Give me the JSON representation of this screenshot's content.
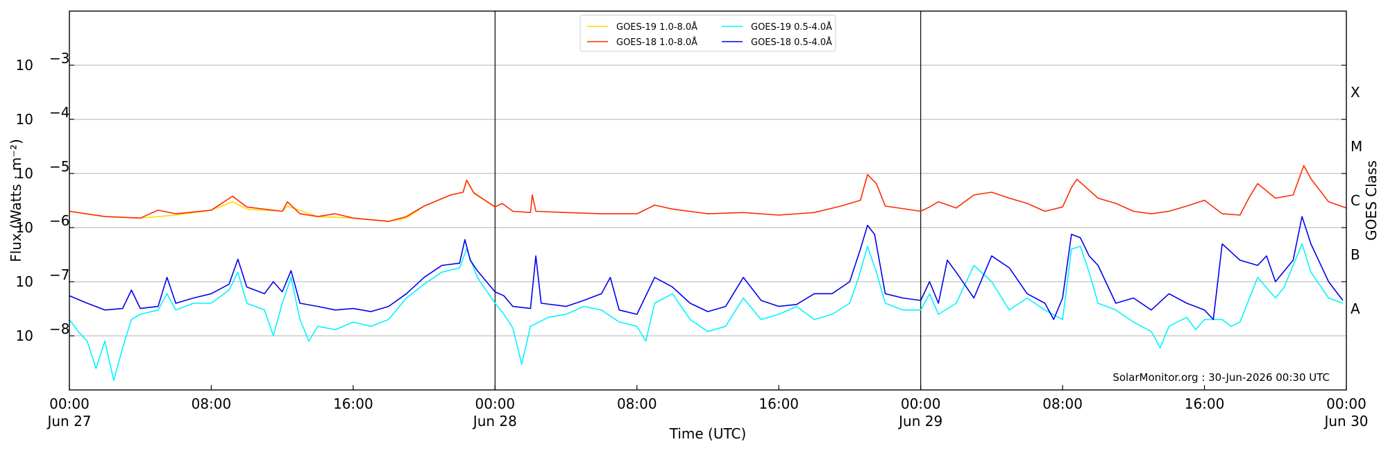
{
  "chart_data": {
    "type": "line",
    "xlabel": "Time (UTC)",
    "ylabel": "Flux (Watts · m⁻²)",
    "y2label": "GOES Class",
    "yscale": "log",
    "xlim": [
      0,
      72
    ],
    "ylim": [
      1e-09,
      0.01
    ],
    "grid": "horizontal",
    "legend_position": "top-center",
    "credit": "SolarMonitor.org : 30-Jun-2026 00:30 UTC",
    "x_ticks": [
      {
        "x": 0,
        "line1": "00:00",
        "line2": "Jun 27"
      },
      {
        "x": 8,
        "line1": "08:00",
        "line2": ""
      },
      {
        "x": 16,
        "line1": "16:00",
        "line2": ""
      },
      {
        "x": 24,
        "line1": "00:00",
        "line2": "Jun 28"
      },
      {
        "x": 32,
        "line1": "08:00",
        "line2": ""
      },
      {
        "x": 40,
        "line1": "16:00",
        "line2": ""
      },
      {
        "x": 48,
        "line1": "00:00",
        "line2": "Jun 29"
      },
      {
        "x": 56,
        "line1": "08:00",
        "line2": ""
      },
      {
        "x": 64,
        "line1": "16:00",
        "line2": ""
      },
      {
        "x": 72,
        "line1": "00:00",
        "line2": "Jun 30"
      }
    ],
    "y_ticks": [
      {
        "value": 1e-08,
        "base": "10",
        "exp": "−8"
      },
      {
        "value": 1e-07,
        "base": "10",
        "exp": "−7"
      },
      {
        "value": 1e-06,
        "base": "10",
        "exp": "−6"
      },
      {
        "value": 1e-05,
        "base": "10",
        "exp": "−5"
      },
      {
        "value": 0.0001,
        "base": "10",
        "exp": "−4"
      },
      {
        "value": 0.001,
        "base": "10",
        "exp": "−3"
      }
    ],
    "goes_classes": [
      {
        "label": "A",
        "value": 3.16e-08
      },
      {
        "label": "B",
        "value": 3.16e-07
      },
      {
        "label": "C",
        "value": 3.16e-06
      },
      {
        "label": "M",
        "value": 3.16e-05
      },
      {
        "label": "X",
        "value": 0.000316
      }
    ],
    "day_separators": [
      24,
      48
    ],
    "series": [
      {
        "name": "GOES-19 1.0-8.0Å",
        "color": "#FFD700",
        "points": [
          [
            0,
            2e-06
          ],
          [
            2,
            1.6e-06
          ],
          [
            4,
            1.5e-06
          ],
          [
            6,
            1.7e-06
          ],
          [
            8,
            2.1e-06
          ],
          [
            9.2,
            3e-06
          ],
          [
            10,
            2.2e-06
          ],
          [
            12,
            2e-06
          ],
          [
            12.3,
            2.5e-06
          ],
          [
            14,
            1.6e-06
          ],
          [
            16,
            1.5e-06
          ],
          [
            18,
            1.3e-06
          ],
          [
            19,
            1.5e-06
          ],
          [
            20,
            2.5e-06
          ],
          [
            21.5,
            4e-06
          ],
          [
            22.2,
            4.5e-06
          ],
          [
            22.4,
            7.5e-06
          ],
          [
            22.8,
            4.3e-06
          ],
          [
            24,
            2.4e-06
          ]
        ]
      },
      {
        "name": "GOES-18 1.0-8.0Å",
        "color": "#FF2A00",
        "points": [
          [
            0,
            2e-06
          ],
          [
            2,
            1.6e-06
          ],
          [
            4,
            1.5e-06
          ],
          [
            5,
            2.1e-06
          ],
          [
            6,
            1.8e-06
          ],
          [
            8,
            2.1e-06
          ],
          [
            9.2,
            3.8e-06
          ],
          [
            10,
            2.4e-06
          ],
          [
            12,
            2e-06
          ],
          [
            12.3,
            3e-06
          ],
          [
            13,
            1.8e-06
          ],
          [
            14,
            1.6e-06
          ],
          [
            15,
            1.8e-06
          ],
          [
            16,
            1.5e-06
          ],
          [
            18,
            1.3e-06
          ],
          [
            19,
            1.6e-06
          ],
          [
            20,
            2.5e-06
          ],
          [
            21.5,
            4e-06
          ],
          [
            22.2,
            4.5e-06
          ],
          [
            22.4,
            7.5e-06
          ],
          [
            22.8,
            4.4e-06
          ],
          [
            24,
            2.4e-06
          ],
          [
            24.4,
            2.8e-06
          ],
          [
            25,
            2e-06
          ],
          [
            26,
            1.9e-06
          ],
          [
            26.1,
            4e-06
          ],
          [
            26.3,
            2e-06
          ],
          [
            28,
            1.9e-06
          ],
          [
            30,
            1.8e-06
          ],
          [
            32,
            1.8e-06
          ],
          [
            33,
            2.6e-06
          ],
          [
            34,
            2.2e-06
          ],
          [
            36,
            1.8e-06
          ],
          [
            38,
            1.9e-06
          ],
          [
            40,
            1.7e-06
          ],
          [
            42,
            1.9e-06
          ],
          [
            43.5,
            2.5e-06
          ],
          [
            44.6,
            3.2e-06
          ],
          [
            45,
            9.5e-06
          ],
          [
            45.5,
            6.5e-06
          ],
          [
            46,
            2.5e-06
          ],
          [
            48,
            2e-06
          ],
          [
            48.5,
            2.4e-06
          ],
          [
            49,
            3e-06
          ],
          [
            50,
            2.3e-06
          ],
          [
            51,
            4e-06
          ],
          [
            52,
            4.5e-06
          ],
          [
            53,
            3.5e-06
          ],
          [
            54,
            2.8e-06
          ],
          [
            55,
            2e-06
          ],
          [
            56,
            2.4e-06
          ],
          [
            56.5,
            5.5e-06
          ],
          [
            56.8,
            7.8e-06
          ],
          [
            57.2,
            6e-06
          ],
          [
            58,
            3.5e-06
          ],
          [
            59,
            2.8e-06
          ],
          [
            60,
            2e-06
          ],
          [
            61,
            1.8e-06
          ],
          [
            62,
            2e-06
          ],
          [
            63,
            2.5e-06
          ],
          [
            64,
            3.2e-06
          ],
          [
            65,
            1.8e-06
          ],
          [
            66,
            1.7e-06
          ],
          [
            66.5,
            3.5e-06
          ],
          [
            67,
            6.5e-06
          ],
          [
            68,
            3.5e-06
          ],
          [
            69,
            4e-06
          ],
          [
            69.6,
            1.4e-05
          ],
          [
            70,
            8e-06
          ],
          [
            71,
            3e-06
          ],
          [
            72,
            2.3e-06
          ]
        ]
      },
      {
        "name": "GOES-19 0.5-4.0Å",
        "color": "#00F5FF",
        "points": [
          [
            0,
            2e-08
          ],
          [
            0.5,
            1.2e-08
          ],
          [
            1,
            8e-09
          ],
          [
            1.5,
            2.5e-09
          ],
          [
            2,
            8e-09
          ],
          [
            2.5,
            1.5e-09
          ],
          [
            3,
            6e-09
          ],
          [
            3.5,
            2e-08
          ],
          [
            4,
            2.5e-08
          ],
          [
            5,
            3e-08
          ],
          [
            5.5,
            6e-08
          ],
          [
            6,
            3e-08
          ],
          [
            7,
            4e-08
          ],
          [
            8,
            4e-08
          ],
          [
            9,
            7e-08
          ],
          [
            9.5,
            1.5e-07
          ],
          [
            10,
            4e-08
          ],
          [
            11,
            3e-08
          ],
          [
            11.5,
            1e-08
          ],
          [
            12,
            4e-08
          ],
          [
            12.5,
            1.2e-07
          ],
          [
            13,
            2e-08
          ],
          [
            13.5,
            8e-09
          ],
          [
            14,
            1.5e-08
          ],
          [
            15,
            1.3e-08
          ],
          [
            16,
            1.8e-08
          ],
          [
            17,
            1.5e-08
          ],
          [
            18,
            2e-08
          ],
          [
            19,
            5e-08
          ],
          [
            20,
            9e-08
          ],
          [
            21,
            1.5e-07
          ],
          [
            22,
            1.8e-07
          ],
          [
            22.4,
            4e-07
          ],
          [
            23,
            1.2e-07
          ],
          [
            24,
            4e-08
          ],
          [
            24.5,
            2.5e-08
          ],
          [
            25,
            1.4e-08
          ],
          [
            25.5,
            3e-09
          ],
          [
            26,
            1.5e-08
          ],
          [
            27,
            2.2e-08
          ],
          [
            28,
            2.5e-08
          ],
          [
            29,
            3.5e-08
          ],
          [
            30,
            3e-08
          ],
          [
            31,
            1.8e-08
          ],
          [
            32,
            1.5e-08
          ],
          [
            32.5,
            8e-09
          ],
          [
            33,
            4e-08
          ],
          [
            34,
            6e-08
          ],
          [
            35,
            2e-08
          ],
          [
            36,
            1.2e-08
          ],
          [
            37,
            1.5e-08
          ],
          [
            38,
            5e-08
          ],
          [
            39,
            2e-08
          ],
          [
            40,
            2.5e-08
          ],
          [
            41,
            3.5e-08
          ],
          [
            42,
            2e-08
          ],
          [
            43,
            2.5e-08
          ],
          [
            44,
            4e-08
          ],
          [
            44.5,
            1.2e-07
          ],
          [
            45,
            4.5e-07
          ],
          [
            45.5,
            1.5e-07
          ],
          [
            46,
            4e-08
          ],
          [
            47,
            3e-08
          ],
          [
            48,
            3e-08
          ],
          [
            48.5,
            6e-08
          ],
          [
            49,
            2.5e-08
          ],
          [
            50,
            4e-08
          ],
          [
            51,
            2e-07
          ],
          [
            52,
            1e-07
          ],
          [
            53,
            3e-08
          ],
          [
            54,
            5e-08
          ],
          [
            55,
            3e-08
          ],
          [
            56,
            2e-08
          ],
          [
            56.5,
            4e-07
          ],
          [
            57,
            4.5e-07
          ],
          [
            57.5,
            1.5e-07
          ],
          [
            58,
            4e-08
          ],
          [
            59,
            3e-08
          ],
          [
            60,
            1.8e-08
          ],
          [
            61,
            1.2e-08
          ],
          [
            61.5,
            6e-09
          ],
          [
            62,
            1.5e-08
          ],
          [
            63,
            2.2e-08
          ],
          [
            63.5,
            1.3e-08
          ],
          [
            64,
            2e-08
          ],
          [
            65,
            2e-08
          ],
          [
            65.5,
            1.5e-08
          ],
          [
            66,
            1.8e-08
          ],
          [
            67,
            1.2e-07
          ],
          [
            68,
            5e-08
          ],
          [
            68.5,
            8e-08
          ],
          [
            69,
            2e-07
          ],
          [
            69.5,
            5e-07
          ],
          [
            70,
            1.5e-07
          ],
          [
            71,
            5e-08
          ],
          [
            71.8,
            4e-08
          ]
        ]
      },
      {
        "name": "GOES-18 0.5-4.0Å",
        "color": "#0000EE",
        "points": [
          [
            0,
            5.5e-08
          ],
          [
            1,
            4e-08
          ],
          [
            2,
            3e-08
          ],
          [
            3,
            3.2e-08
          ],
          [
            3.5,
            7e-08
          ],
          [
            4,
            3.2e-08
          ],
          [
            5,
            3.5e-08
          ],
          [
            5.5,
            1.2e-07
          ],
          [
            6,
            4e-08
          ],
          [
            7,
            5e-08
          ],
          [
            8,
            6e-08
          ],
          [
            9,
            9e-08
          ],
          [
            9.5,
            2.6e-07
          ],
          [
            10,
            8e-08
          ],
          [
            11,
            6e-08
          ],
          [
            11.5,
            1e-07
          ],
          [
            12,
            6.5e-08
          ],
          [
            12.5,
            1.6e-07
          ],
          [
            13,
            4e-08
          ],
          [
            14,
            3.5e-08
          ],
          [
            15,
            3e-08
          ],
          [
            16,
            3.2e-08
          ],
          [
            17,
            2.8e-08
          ],
          [
            18,
            3.5e-08
          ],
          [
            19,
            6e-08
          ],
          [
            20,
            1.2e-07
          ],
          [
            21,
            2e-07
          ],
          [
            22,
            2.2e-07
          ],
          [
            22.3,
            6e-07
          ],
          [
            22.6,
            2.5e-07
          ],
          [
            23,
            1.6e-07
          ],
          [
            24,
            6.5e-08
          ],
          [
            24.5,
            5.5e-08
          ],
          [
            25,
            3.5e-08
          ],
          [
            26,
            3.2e-08
          ],
          [
            26.3,
            3e-07
          ],
          [
            26.6,
            4e-08
          ],
          [
            28,
            3.5e-08
          ],
          [
            29,
            4.5e-08
          ],
          [
            30,
            6e-08
          ],
          [
            30.5,
            1.2e-07
          ],
          [
            31,
            3e-08
          ],
          [
            32,
            2.5e-08
          ],
          [
            33,
            1.2e-07
          ],
          [
            34,
            8e-08
          ],
          [
            35,
            4e-08
          ],
          [
            36,
            2.8e-08
          ],
          [
            37,
            3.5e-08
          ],
          [
            38,
            1.2e-07
          ],
          [
            39,
            4.5e-08
          ],
          [
            40,
            3.5e-08
          ],
          [
            41,
            3.8e-08
          ],
          [
            42,
            6e-08
          ],
          [
            43,
            6e-08
          ],
          [
            44,
            1e-07
          ],
          [
            44.6,
            4e-07
          ],
          [
            45,
            1.1e-06
          ],
          [
            45.4,
            7.5e-07
          ],
          [
            46,
            6e-08
          ],
          [
            47,
            5e-08
          ],
          [
            48,
            4.5e-08
          ],
          [
            48.5,
            1e-07
          ],
          [
            49,
            4e-08
          ],
          [
            49.5,
            2.5e-07
          ],
          [
            50,
            1.5e-07
          ],
          [
            51,
            5e-08
          ],
          [
            52,
            3e-07
          ],
          [
            53,
            1.8e-07
          ],
          [
            54,
            6e-08
          ],
          [
            55,
            4e-08
          ],
          [
            55.5,
            2e-08
          ],
          [
            56,
            5e-08
          ],
          [
            56.5,
            7.5e-07
          ],
          [
            57,
            6.5e-07
          ],
          [
            57.5,
            3e-07
          ],
          [
            58,
            2e-07
          ],
          [
            59,
            4e-08
          ],
          [
            60,
            5e-08
          ],
          [
            61,
            3e-08
          ],
          [
            62,
            6e-08
          ],
          [
            63,
            4e-08
          ],
          [
            64,
            3e-08
          ],
          [
            64.5,
            2e-08
          ],
          [
            65,
            5e-07
          ],
          [
            66,
            2.5e-07
          ],
          [
            67,
            2e-07
          ],
          [
            67.5,
            3e-07
          ],
          [
            68,
            1e-07
          ],
          [
            69,
            2.5e-07
          ],
          [
            69.5,
            1.6e-06
          ],
          [
            70,
            5e-07
          ],
          [
            71,
            1e-07
          ],
          [
            71.8,
            4.5e-08
          ]
        ]
      }
    ]
  }
}
